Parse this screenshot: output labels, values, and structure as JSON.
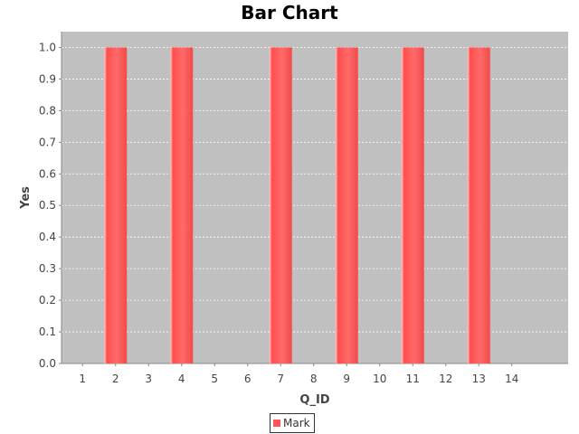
{
  "chart_data": {
    "type": "bar",
    "title": "Bar Chart",
    "xlabel": "Q_ID",
    "ylabel": "Yes",
    "categories": [
      "1",
      "2",
      "3",
      "4",
      "5",
      "6",
      "7",
      "8",
      "9",
      "10",
      "11",
      "12",
      "13",
      "14"
    ],
    "series": [
      {
        "name": "Mark",
        "color": "#ff5555",
        "values": [
          0,
          1.0,
          0,
          1.0,
          0,
          0,
          1.0,
          0,
          1.0,
          0,
          1.0,
          0,
          1.0,
          0
        ]
      }
    ],
    "ylim": [
      0,
      1.05
    ],
    "yticks": [
      "0.0",
      "0.1",
      "0.2",
      "0.3",
      "0.4",
      "0.5",
      "0.6",
      "0.7",
      "0.8",
      "0.9",
      "1.0"
    ],
    "grid": true,
    "legend_position": "bottom",
    "plot_background": "#c0c0c0"
  }
}
